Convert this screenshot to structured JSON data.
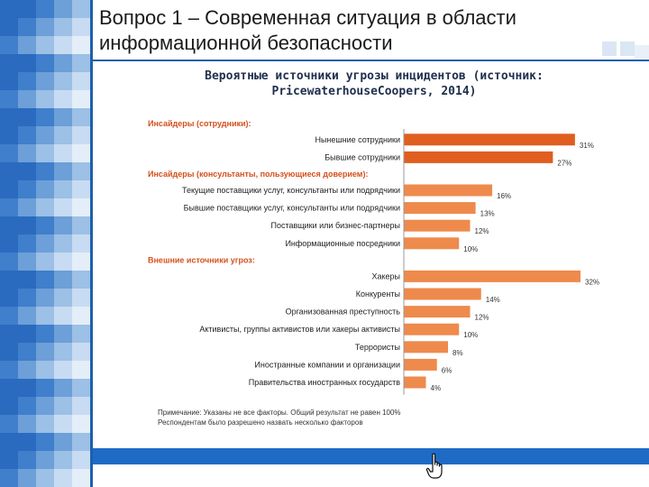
{
  "slide": {
    "title": "Вопрос 1 – Современная ситуация в области информационной безопасности"
  },
  "chart_heading": "Вероятные источники угрозы инцидентов (источник: PricewaterhouseCoopers, 2014)",
  "footnote": {
    "line1": "Примечание: Указаны не все факторы. Общий результат не равен 100%",
    "line2": "Респондентам было разрешено назвать несколько факторов"
  },
  "colors": {
    "bar_dark": "#e05e1f",
    "bar_light": "#ee8a4c",
    "group_label": "#d4501c",
    "accent_blue": "#1e5fae",
    "footer_blue": "#1e6bc6"
  },
  "chart_data": {
    "type": "bar",
    "orientation": "horizontal",
    "title": "Вероятные источники угрозы инцидентов (источник: PricewaterhouseCoopers, 2014)",
    "unit": "%",
    "xlim": [
      0,
      35
    ],
    "groups": [
      {
        "label": "Инсайдеры (сотрудники):",
        "items": [
          {
            "label": "Нынешние сотрудники",
            "value": 31,
            "value_label": "31%",
            "tone": "dark"
          },
          {
            "label": "Бывшие сотрудники",
            "value": 27,
            "value_label": "27%",
            "tone": "dark"
          }
        ]
      },
      {
        "label": "Инсайдеры (консультанты, пользующиеся доверием):",
        "items": [
          {
            "label": "Текущие поставщики услуг, консультанты или подрядчики",
            "value": 16,
            "value_label": "16%",
            "tone": "light"
          },
          {
            "label": "Бывшие поставщики услуг, консультанты или подрядчики",
            "value": 13,
            "value_label": "13%",
            "tone": "light"
          },
          {
            "label": "Поставщики или бизнес-партнеры",
            "value": 12,
            "value_label": "12%",
            "tone": "light"
          },
          {
            "label": "Информационные посредники",
            "value": 10,
            "value_label": "10%",
            "tone": "light"
          }
        ]
      },
      {
        "label": "Внешние источники угроз:",
        "items": [
          {
            "label": "Хакеры",
            "value": 32,
            "value_label": "32%",
            "tone": "light"
          },
          {
            "label": "Конкуренты",
            "value": 14,
            "value_label": "14%",
            "tone": "light"
          },
          {
            "label": "Организованная преступность",
            "value": 12,
            "value_label": "12%",
            "tone": "light"
          },
          {
            "label": "Активисты, группы активистов или хакеры активисты",
            "value": 10,
            "value_label": "10%",
            "tone": "light"
          },
          {
            "label": "Террористы",
            "value": 8,
            "value_label": "8%",
            "tone": "light"
          },
          {
            "label": "Иностранные компании и организации",
            "value": 6,
            "value_label": "6%",
            "tone": "light"
          },
          {
            "label": "Правительства иностранных государств",
            "value": 4,
            "value_label": "4%",
            "tone": "light"
          }
        ]
      }
    ]
  }
}
